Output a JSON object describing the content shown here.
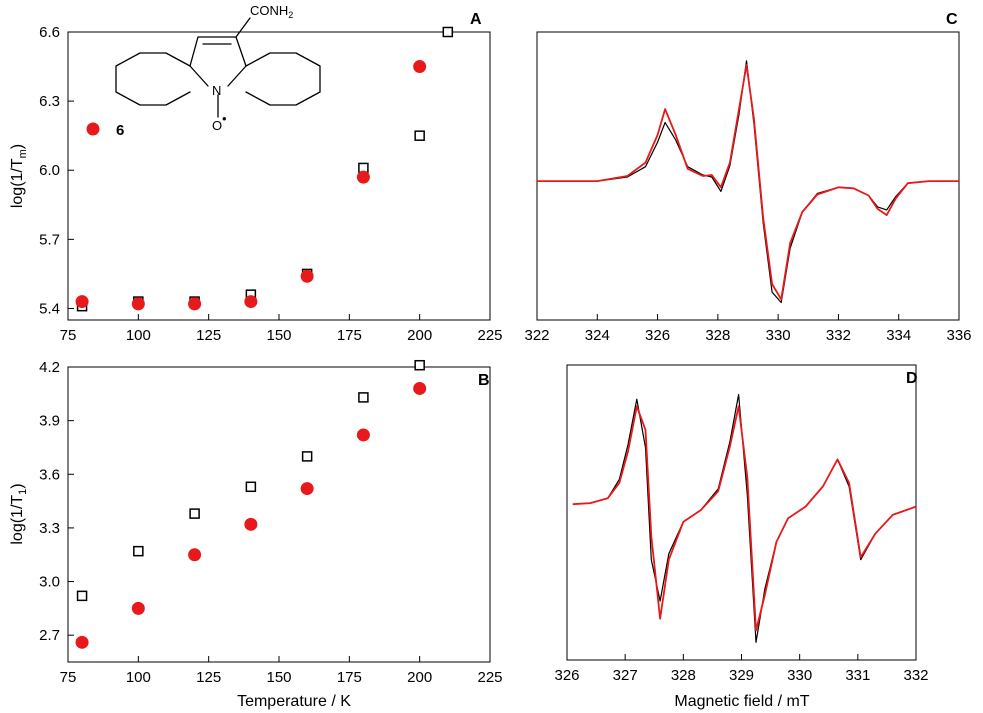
{
  "colors": {
    "red": "#e8191a",
    "black": "#000000"
  },
  "structure": {
    "substituent_label": "CONH2",
    "nitrogen_label": "N",
    "oxygen_label": "O",
    "radical_dot": "•",
    "compound_label": "6"
  },
  "chart_data": [
    {
      "id": "A",
      "type": "scatter",
      "panel_label": "A",
      "xlabel": "",
      "ylabel": "log(1/Tm)",
      "ylabel_main": "log(1/T",
      "ylabel_sub": "m",
      "ylabel_end": ")",
      "xlim": [
        75,
        225
      ],
      "ylim": [
        5.35,
        6.6
      ],
      "xticks": [
        75,
        100,
        125,
        150,
        175,
        200,
        225
      ],
      "yticks": [
        "5.4",
        "5.7",
        "6.0",
        "6.3",
        "6.6"
      ],
      "series": [
        {
          "marker": "open-square",
          "color": "#000000",
          "x": [
            80,
            100,
            120,
            140,
            160,
            180,
            200,
            210
          ],
          "y": [
            5.41,
            5.43,
            5.43,
            5.46,
            5.55,
            6.01,
            6.15,
            6.6
          ]
        },
        {
          "name": "6",
          "marker": "filled-circle",
          "color": "#e8191a",
          "x": [
            80,
            100,
            120,
            140,
            160,
            180,
            200
          ],
          "y": [
            5.43,
            5.42,
            5.42,
            5.43,
            5.54,
            5.97,
            6.45
          ]
        }
      ]
    },
    {
      "id": "B",
      "type": "scatter",
      "panel_label": "B",
      "xlabel": "Temperature / K",
      "ylabel": "log(1/T1)",
      "ylabel_main": "log(1/T",
      "ylabel_sub": "1",
      "ylabel_end": ")",
      "xlim": [
        75,
        225
      ],
      "ylim": [
        2.55,
        4.2
      ],
      "xticks": [
        75,
        100,
        125,
        150,
        175,
        200,
        225
      ],
      "yticks": [
        "2.7",
        "3.0",
        "3.3",
        "3.6",
        "3.9",
        "4.2"
      ],
      "series": [
        {
          "marker": "open-square",
          "color": "#000000",
          "x": [
            80,
            100,
            120,
            140,
            160,
            180,
            200
          ],
          "y": [
            2.92,
            3.17,
            3.38,
            3.53,
            3.7,
            4.03,
            4.21
          ]
        },
        {
          "marker": "filled-circle",
          "color": "#e8191a",
          "x": [
            80,
            100,
            120,
            140,
            160,
            180,
            200
          ],
          "y": [
            2.66,
            2.85,
            3.15,
            3.32,
            3.52,
            3.82,
            4.08
          ]
        }
      ]
    },
    {
      "id": "C",
      "type": "line",
      "panel_label": "C",
      "xlabel": "",
      "ylabel": "",
      "xlim": [
        322,
        336
      ],
      "xticks": [
        "322",
        "324",
        "326",
        "328",
        "330",
        "332",
        "334",
        "336"
      ],
      "series": [
        {
          "color": "#000000",
          "x": [
            322.0,
            323.0,
            324.0,
            325.0,
            325.6,
            326.0,
            326.25,
            326.6,
            327.0,
            327.5,
            327.8,
            328.1,
            328.4,
            328.7,
            328.95,
            329.2,
            329.5,
            329.8,
            330.1,
            330.4,
            330.8,
            331.3,
            332.0,
            332.5,
            333.0,
            333.3,
            333.6,
            333.9,
            334.3,
            335.0,
            336.0
          ],
          "y": [
            0.0,
            0.0,
            0.0,
            0.04,
            0.14,
            0.38,
            0.57,
            0.4,
            0.14,
            0.06,
            0.04,
            -0.1,
            0.15,
            0.65,
            1.17,
            0.55,
            -0.4,
            -1.08,
            -1.18,
            -0.65,
            -0.3,
            -0.12,
            -0.06,
            -0.07,
            -0.14,
            -0.25,
            -0.28,
            -0.15,
            -0.02,
            0.0,
            0.0
          ]
        },
        {
          "color": "#e8191a",
          "x": [
            322.0,
            323.0,
            324.0,
            325.0,
            325.6,
            326.0,
            326.25,
            326.6,
            327.0,
            327.5,
            327.8,
            328.1,
            328.4,
            328.7,
            328.95,
            329.2,
            329.5,
            329.8,
            330.1,
            330.4,
            330.8,
            331.3,
            332.0,
            332.5,
            333.0,
            333.3,
            333.6,
            333.9,
            334.3,
            335.0,
            336.0
          ],
          "y": [
            0.0,
            0.0,
            0.0,
            0.05,
            0.18,
            0.45,
            0.7,
            0.45,
            0.12,
            0.05,
            0.06,
            -0.06,
            0.18,
            0.7,
            1.13,
            0.6,
            -0.35,
            -1.0,
            -1.15,
            -0.6,
            -0.3,
            -0.13,
            -0.06,
            -0.07,
            -0.14,
            -0.27,
            -0.33,
            -0.17,
            -0.02,
            0.0,
            0.0
          ]
        }
      ]
    },
    {
      "id": "D",
      "type": "line",
      "panel_label": "D",
      "xlabel": "Magnetic field / mT",
      "ylabel": "",
      "xlim": [
        326,
        332
      ],
      "xticks": [
        "326",
        "327",
        "328",
        "329",
        "330",
        "331",
        "332"
      ],
      "series": [
        {
          "color": "#000000",
          "x": [
            326.1,
            326.4,
            326.7,
            326.9,
            327.05,
            327.2,
            327.35,
            327.45,
            327.6,
            327.75,
            328.0,
            328.3,
            328.6,
            328.8,
            328.95,
            329.1,
            329.25,
            329.4,
            329.6,
            329.8,
            330.1,
            330.4,
            330.65,
            330.85,
            331.05,
            331.3,
            331.6,
            332.0
          ],
          "y": [
            0.07,
            0.08,
            0.12,
            0.28,
            0.58,
            0.96,
            0.55,
            -0.4,
            -0.75,
            -0.35,
            -0.08,
            0.02,
            0.2,
            0.6,
            1.0,
            0.15,
            -1.1,
            -0.65,
            -0.25,
            -0.05,
            0.05,
            0.22,
            0.45,
            0.22,
            -0.4,
            -0.18,
            -0.02,
            0.05
          ]
        },
        {
          "color": "#e8191a",
          "x": [
            326.1,
            326.4,
            326.7,
            326.9,
            327.05,
            327.2,
            327.35,
            327.45,
            327.6,
            327.75,
            328.0,
            328.3,
            328.6,
            328.8,
            328.95,
            329.1,
            329.25,
            329.4,
            329.6,
            329.8,
            330.1,
            330.4,
            330.65,
            330.85,
            331.05,
            331.3,
            331.6,
            332.0
          ],
          "y": [
            0.07,
            0.08,
            0.12,
            0.25,
            0.52,
            0.9,
            0.7,
            -0.2,
            -0.9,
            -0.4,
            -0.08,
            0.02,
            0.18,
            0.56,
            0.9,
            0.3,
            -1.0,
            -0.7,
            -0.25,
            -0.05,
            0.05,
            0.22,
            0.45,
            0.25,
            -0.38,
            -0.18,
            -0.02,
            0.05
          ]
        }
      ]
    }
  ]
}
